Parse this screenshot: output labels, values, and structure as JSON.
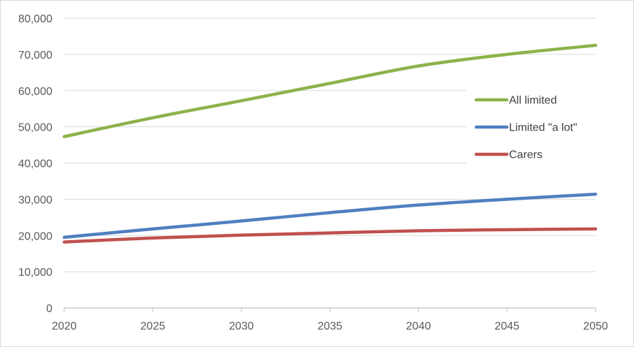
{
  "chart_data": {
    "type": "line",
    "title": "",
    "xlabel": "",
    "ylabel": "",
    "x": [
      2020,
      2025,
      2030,
      2035,
      2040,
      2045,
      2050
    ],
    "x_ticks": [
      "2020",
      "2025",
      "2030",
      "2035",
      "2040",
      "2045",
      "2050"
    ],
    "y_ticks": [
      "0",
      "10,000",
      "20,000",
      "30,000",
      "40,000",
      "50,000",
      "60,000",
      "70,000",
      "80,000"
    ],
    "ylim": [
      0,
      80000
    ],
    "xlim": [
      2020,
      2050
    ],
    "grid": "horizontal",
    "legend_position": "right",
    "series": [
      {
        "name": "All limited",
        "color": "#8db24a",
        "values": [
          47300,
          52500,
          57200,
          62000,
          66800,
          70000,
          72500
        ]
      },
      {
        "name": "Limited \"a lot\"",
        "color": "#4f7fc0",
        "values": [
          19500,
          21800,
          24000,
          26300,
          28400,
          30000,
          31400
        ]
      },
      {
        "name": "Carers",
        "color": "#c0504d",
        "values": [
          18200,
          19300,
          20100,
          20700,
          21300,
          21600,
          21800
        ]
      }
    ]
  }
}
